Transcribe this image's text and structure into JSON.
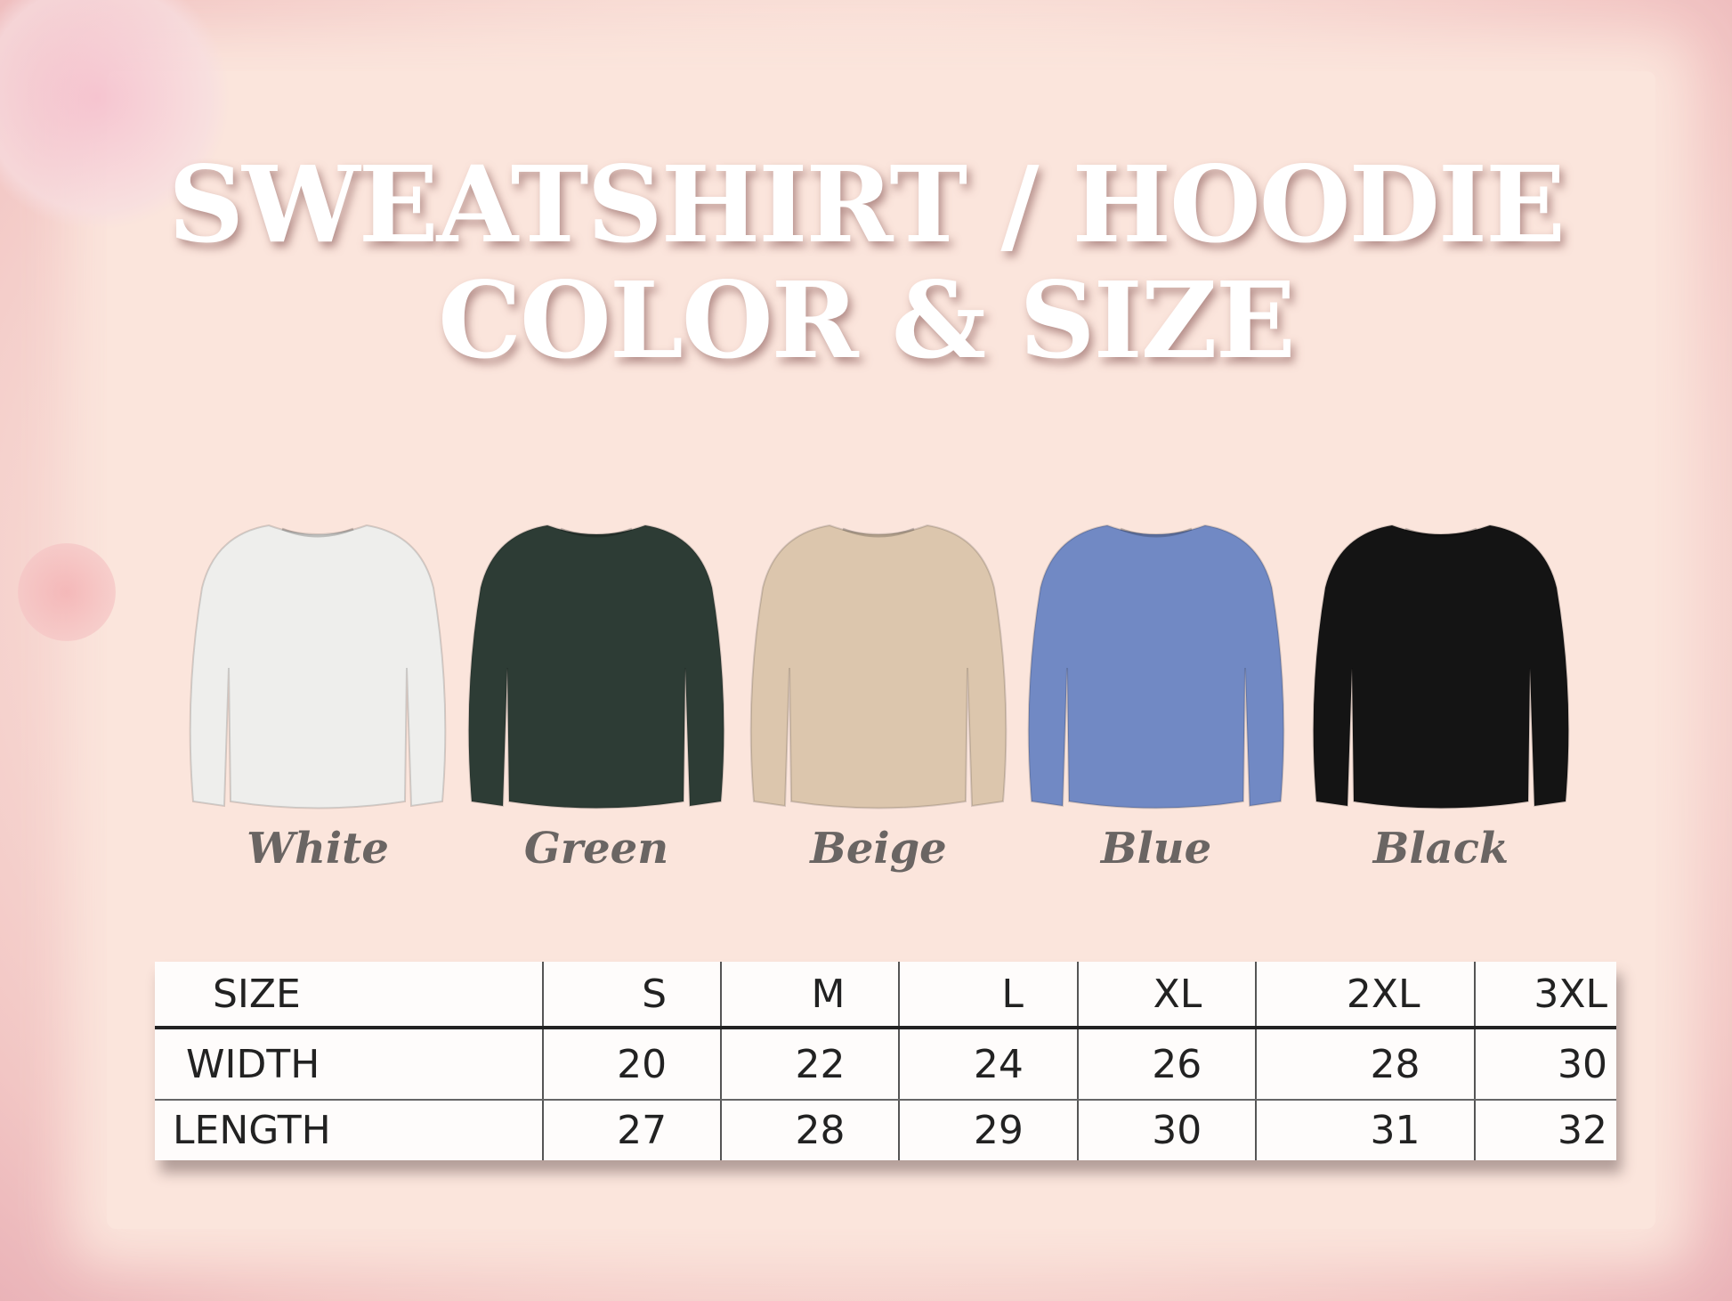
{
  "title": {
    "line1": "SWEATSHIRT / HOODIE",
    "line2": "COLOR & SIZE"
  },
  "colors": [
    {
      "label": "White",
      "hex": "#eeeeec"
    },
    {
      "label": "Green",
      "hex": "#2d3c35"
    },
    {
      "label": "Beige",
      "hex": "#dcc6ad"
    },
    {
      "label": "Blue",
      "hex": "#7189c4"
    },
    {
      "label": "Black",
      "hex": "#141414"
    }
  ],
  "size_table": {
    "headers": [
      "SIZE",
      "S",
      "M",
      "L",
      "XL",
      "2XL",
      "3XL"
    ],
    "rows": [
      {
        "label": "WIDTH",
        "values": [
          "20",
          "22",
          "24",
          "26",
          "28",
          "30"
        ]
      },
      {
        "label": "LENGTH",
        "values": [
          "27",
          "28",
          "29",
          "30",
          "31",
          "32"
        ]
      }
    ]
  }
}
